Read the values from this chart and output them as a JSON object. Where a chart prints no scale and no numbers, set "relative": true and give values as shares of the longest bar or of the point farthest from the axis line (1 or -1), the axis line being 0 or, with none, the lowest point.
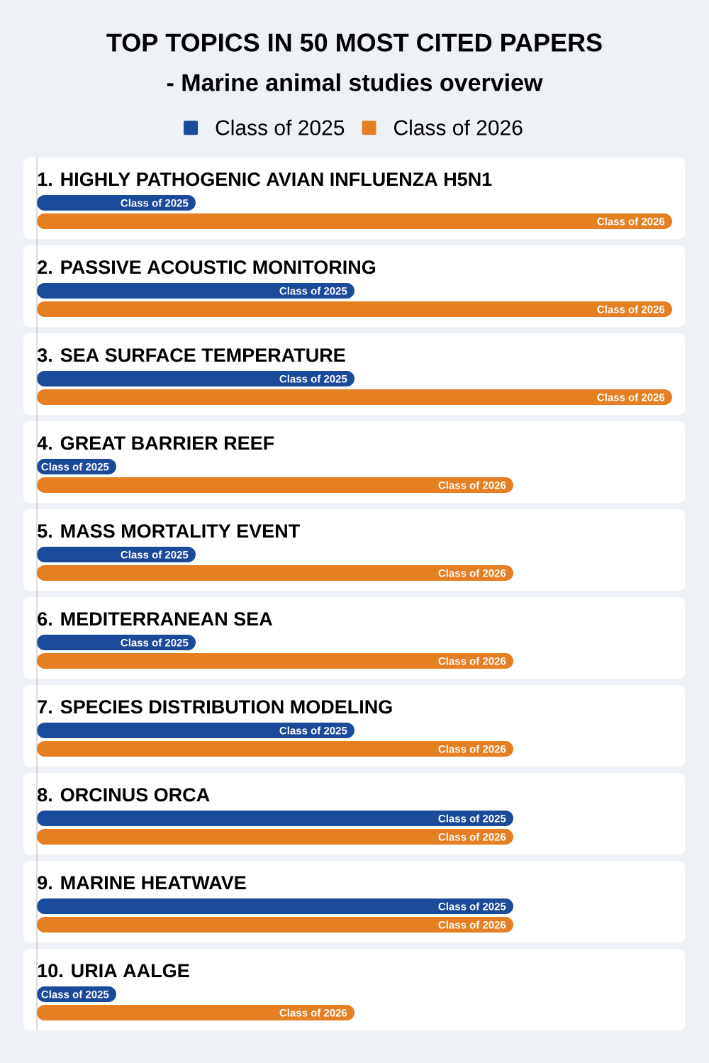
{
  "chart_data": {
    "type": "bar",
    "orientation": "horizontal",
    "relative": true,
    "title": "TOP TOPICS IN 50 MOST CITED PAPERS",
    "subtitle": "- Marine animal studies overview",
    "categories": [
      "1. HIGHLY PATHOGENIC AVIAN INFLUENZA H5N1",
      "2. PASSIVE ACOUSTIC MONITORING",
      "3. SEA SURFACE TEMPERATURE",
      "4. GREAT BARRIER REEF",
      "5. MASS MORTALITY EVENT",
      "6. MEDITERRANEAN SEA",
      "7. SPECIES DISTRIBUTION MODELING",
      "8. ORCINUS ORCA",
      "9. MARINE HEATWAVE",
      "10. URIA AALGE"
    ],
    "series": [
      {
        "name": "Class of 2025",
        "color": "#1b4a9b",
        "values": [
          0.25,
          0.5,
          0.5,
          0.125,
          0.25,
          0.25,
          0.5,
          0.75,
          0.75,
          0.125
        ]
      },
      {
        "name": "Class of 2026",
        "color": "#e57f22",
        "values": [
          1,
          1,
          1,
          0.75,
          0.75,
          0.75,
          0.75,
          0.75,
          0.75,
          0.5
        ]
      }
    ],
    "legend": "top"
  }
}
